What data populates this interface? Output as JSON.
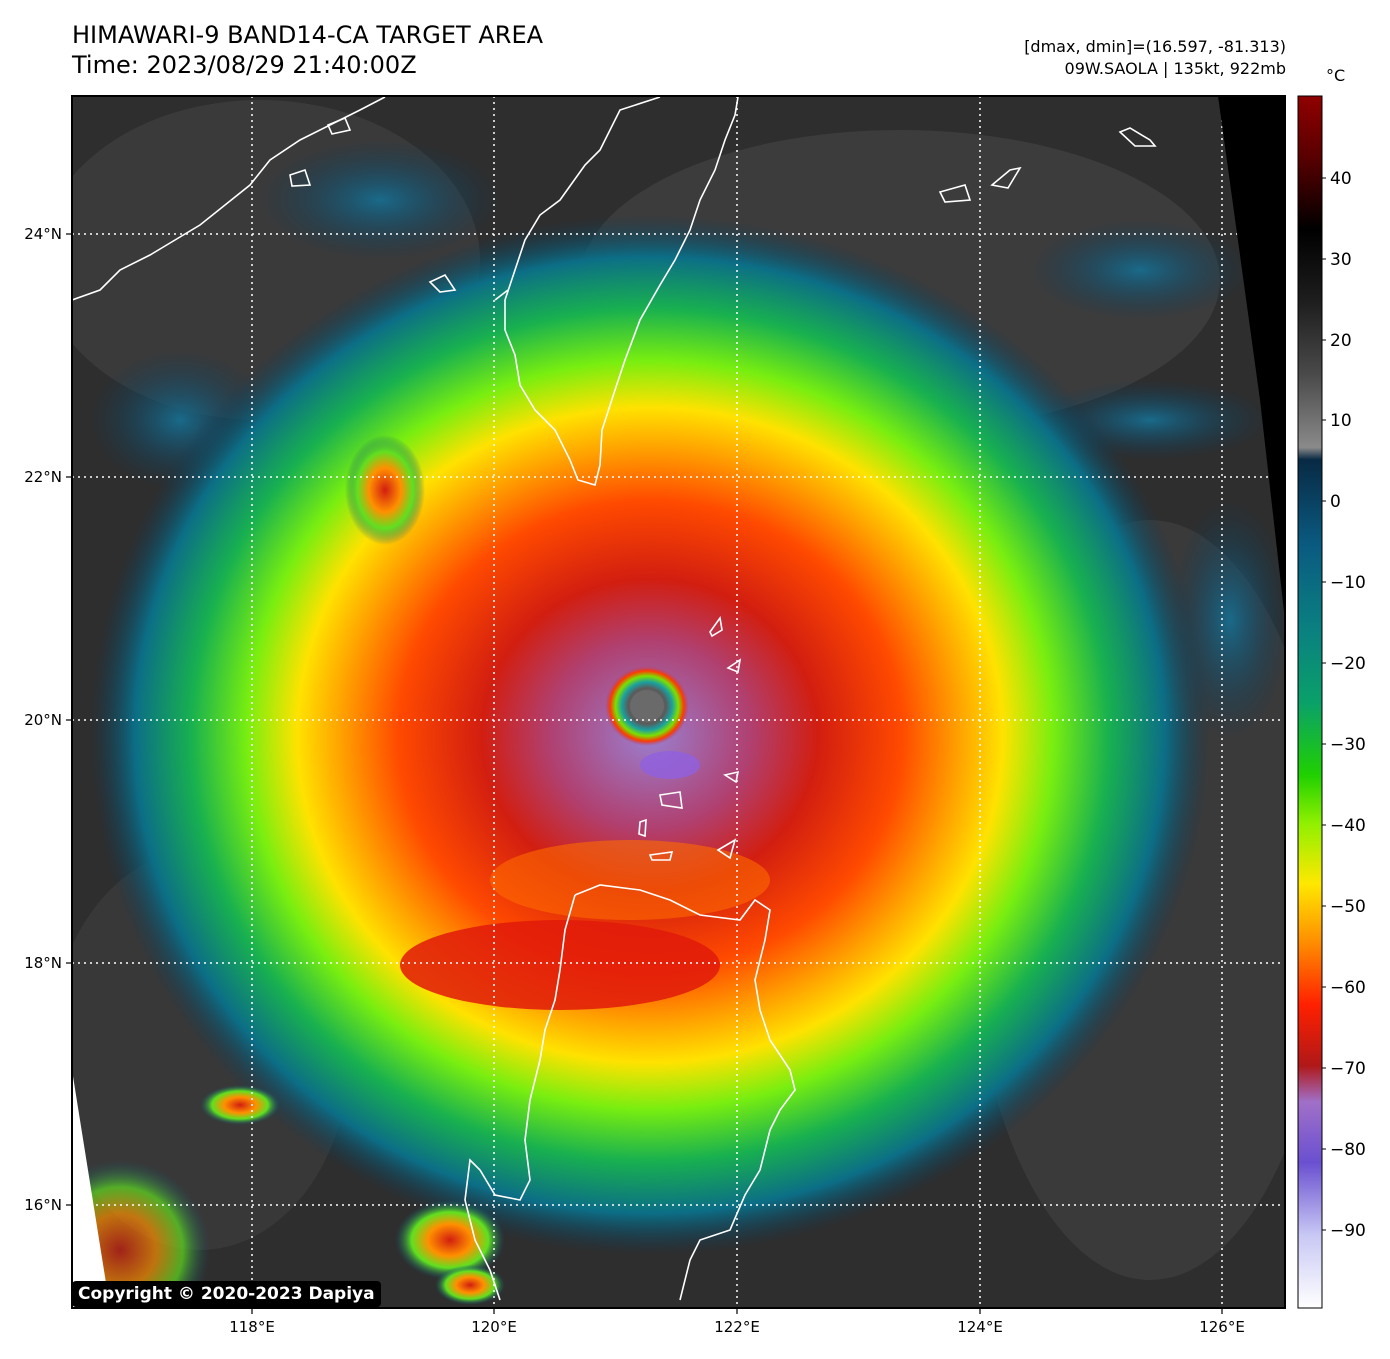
{
  "header": {
    "title_line1": "HIMAWARI-9 BAND14-CA TARGET AREA",
    "title_line2": "Time: 2023/08/29 21:40:00Z",
    "info_line1": "[dmax, dmin]=(16.597, -81.313)",
    "info_line2": "09W.SAOLA | 135kt, 922mb"
  },
  "axes": {
    "lat_labels": [
      "24°N",
      "22°N",
      "20°N",
      "18°N",
      "16°N"
    ],
    "lon_labels": [
      "118°E",
      "120°E",
      "122°E",
      "124°E",
      "126°E"
    ]
  },
  "colorbar": {
    "unit": "°C",
    "ticks": [
      "40",
      "30",
      "20",
      "10",
      "0",
      "−10",
      "−20",
      "−30",
      "−40",
      "−50",
      "−60",
      "−70",
      "−80",
      "−90"
    ],
    "colors": [
      "#f4f4ff",
      "#7060e0",
      "#9a7fd0",
      "#b02020",
      "#ff2a00",
      "#ff9a00",
      "#ffe000",
      "#7cf000",
      "#16c040",
      "#0a9a9a",
      "#0a5a7a",
      "#0a2a4a",
      "#7a7a7a",
      "#3a3a3a",
      "#000000",
      "#8a0000"
    ]
  },
  "storm": {
    "name": "09W.SAOLA",
    "intensity": "135kt",
    "pressure": "922mb"
  },
  "footer": {
    "copyright": "Copyright © 2020-2023 Dapiya"
  }
}
